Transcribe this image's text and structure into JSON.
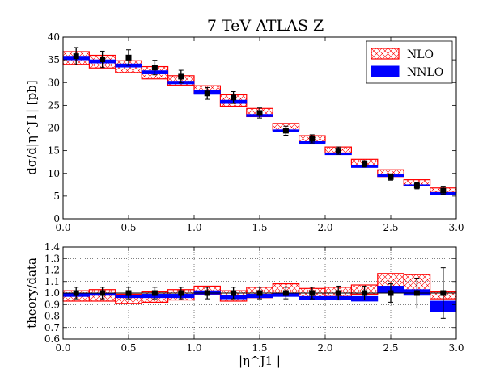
{
  "chart_data": [
    {
      "type": "line",
      "title": "7 TeV ATLAS Z",
      "ylabel": "dσ/d|η^J1| [pb]",
      "xlim": [
        0.0,
        3.0
      ],
      "ylim": [
        0,
        40
      ],
      "x_ticks": [
        "0.0",
        "0.5",
        "1.0",
        "1.5",
        "2.0",
        "2.5",
        "3.0"
      ],
      "y_ticks": [
        "0",
        "5",
        "10",
        "15",
        "20",
        "25",
        "30",
        "35",
        "40"
      ],
      "legend": {
        "placement": "top-right",
        "entries": [
          "NLO",
          "NNLO"
        ]
      },
      "bin_edges": [
        0.0,
        0.2,
        0.4,
        0.6,
        0.8,
        1.0,
        1.2,
        1.4,
        1.6,
        1.8,
        2.0,
        2.2,
        2.4,
        2.6,
        2.8,
        3.0
      ],
      "series": [
        {
          "name": "NLO",
          "color": "#ff0000",
          "style": "hatched band",
          "low": [
            34.0,
            33.2,
            32.2,
            30.8,
            29.4,
            27.5,
            24.8,
            22.5,
            19.5,
            16.9,
            14.5,
            11.8,
            9.3,
            7.4,
            5.8
          ],
          "high": [
            36.8,
            36.0,
            34.8,
            33.5,
            31.5,
            29.3,
            27.3,
            24.3,
            21.0,
            18.3,
            15.8,
            13.1,
            10.8,
            8.6,
            6.8
          ]
        },
        {
          "name": "NNLO",
          "color": "#0000ff",
          "style": "filled band",
          "low": [
            35.0,
            34.3,
            33.4,
            31.9,
            29.7,
            27.4,
            25.4,
            22.5,
            19.1,
            16.6,
            14.1,
            11.3,
            9.3,
            7.2,
            5.3
          ],
          "high": [
            35.8,
            35.0,
            34.1,
            32.6,
            30.3,
            28.2,
            26.1,
            23.0,
            19.6,
            17.0,
            14.5,
            11.7,
            9.7,
            7.5,
            5.8
          ]
        },
        {
          "name": "data",
          "color": "#000000",
          "style": "markers with error bars",
          "x": [
            0.1,
            0.3,
            0.5,
            0.7,
            0.9,
            1.1,
            1.3,
            1.5,
            1.7,
            1.9,
            2.1,
            2.3,
            2.5,
            2.7,
            2.9
          ],
          "y": [
            35.8,
            35.1,
            35.5,
            33.3,
            31.3,
            27.6,
            26.7,
            23.3,
            19.4,
            17.6,
            15.0,
            12.1,
            9.2,
            7.3,
            6.2
          ],
          "err": [
            1.9,
            1.8,
            1.7,
            1.6,
            1.4,
            1.3,
            1.3,
            1.1,
            1.0,
            0.9,
            0.8,
            0.7,
            0.7,
            0.7,
            0.8
          ]
        }
      ]
    },
    {
      "type": "line",
      "xlabel": "|η^J1 |",
      "ylabel": "theory/data",
      "xlim": [
        0.0,
        3.0
      ],
      "ylim": [
        0.6,
        1.4
      ],
      "grid": true,
      "x_ticks": [
        "0.0",
        "0.5",
        "1.0",
        "1.5",
        "2.0",
        "2.5",
        "3.0"
      ],
      "y_ticks": [
        "0.6",
        "0.7",
        "0.8",
        "0.9",
        "1.0",
        "1.1",
        "1.2",
        "1.3",
        "1.4"
      ],
      "bin_edges": [
        0.0,
        0.2,
        0.4,
        0.6,
        0.8,
        1.0,
        1.2,
        1.4,
        1.6,
        1.8,
        2.0,
        2.2,
        2.4,
        2.6,
        2.8,
        3.0
      ],
      "series": [
        {
          "name": "NLO",
          "color": "#ff0000",
          "style": "hatched band",
          "low": [
            0.93,
            0.93,
            0.91,
            0.92,
            0.94,
            0.99,
            0.93,
            0.96,
            1.0,
            0.96,
            0.97,
            0.99,
            1.02,
            1.01,
            0.95
          ],
          "high": [
            1.02,
            1.03,
            0.99,
            1.01,
            1.03,
            1.06,
            1.02,
            1.05,
            1.08,
            1.04,
            1.05,
            1.07,
            1.17,
            1.16,
            1.01
          ]
        },
        {
          "name": "NNLO",
          "color": "#0000ff",
          "style": "filled band",
          "low": [
            0.97,
            0.98,
            0.96,
            0.96,
            0.96,
            0.99,
            0.95,
            0.96,
            0.97,
            0.94,
            0.94,
            0.93,
            1.0,
            0.98,
            0.84
          ],
          "high": [
            1.0,
            1.0,
            0.98,
            0.99,
            0.99,
            1.02,
            0.98,
            0.99,
            1.0,
            0.97,
            0.97,
            0.97,
            1.06,
            1.03,
            0.93
          ]
        },
        {
          "name": "data",
          "color": "#000000",
          "style": "markers with error bars",
          "x": [
            0.1,
            0.3,
            0.5,
            0.7,
            0.9,
            1.1,
            1.3,
            1.5,
            1.7,
            1.9,
            2.1,
            2.3,
            2.5,
            2.7,
            2.9
          ],
          "y": [
            1.0,
            1.0,
            1.0,
            1.0,
            1.0,
            1.0,
            1.0,
            1.0,
            1.0,
            1.0,
            1.0,
            1.0,
            1.0,
            1.0,
            1.0
          ],
          "err": [
            0.05,
            0.05,
            0.05,
            0.05,
            0.05,
            0.05,
            0.05,
            0.05,
            0.05,
            0.05,
            0.06,
            0.06,
            0.08,
            0.13,
            0.22
          ]
        }
      ]
    }
  ]
}
